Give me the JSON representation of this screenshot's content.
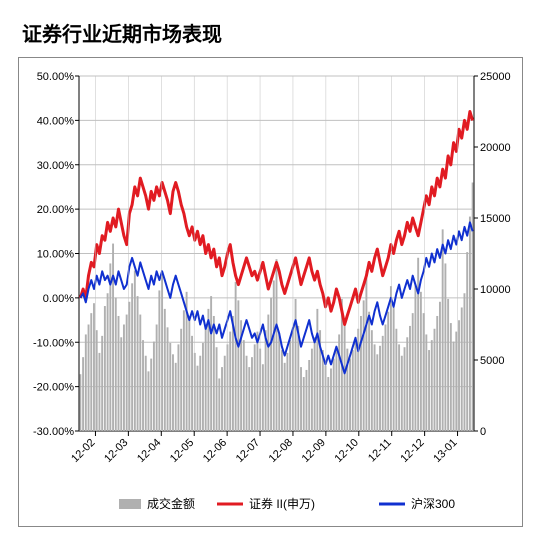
{
  "title": "证券行业近期市场表现",
  "chart": {
    "type": "combo-bar-line-dual-axis",
    "background_color": "#ffffff",
    "border_color": "#888888",
    "grid_color": "#c0c0c0",
    "grid_on": true,
    "left_axis": {
      "label_suffix": "%",
      "min": -30,
      "max": 50,
      "step": 10,
      "ticks": [
        "50.00%",
        "40.00%",
        "30.00%",
        "20.00%",
        "10.00%",
        "0.00%",
        "-10.00%",
        "-20.00%",
        "-30.00%"
      ]
    },
    "right_axis": {
      "min": 0,
      "max": 25000,
      "step": 5000,
      "ticks": [
        "25000",
        "20000",
        "15000",
        "10000",
        "5000",
        "0"
      ]
    },
    "x_axis": {
      "labels": [
        "12-02",
        "12-03",
        "12-04",
        "12-05",
        "12-06",
        "12-07",
        "12-08",
        "12-09",
        "12-10",
        "12-11",
        "12-12",
        "13-01"
      ],
      "rotation": -45
    },
    "series": [
      {
        "name": "成交金额",
        "type": "bar",
        "axis": "right",
        "color": "#b0b0b0",
        "bar_width": 0.7,
        "data": [
          4000,
          5200,
          6800,
          7500,
          8300,
          9000,
          7100,
          5500,
          6700,
          8800,
          9700,
          11800,
          13200,
          9400,
          8100,
          6600,
          7500,
          8200,
          9100,
          10400,
          11300,
          9500,
          8200,
          6400,
          5300,
          4200,
          5100,
          6300,
          7500,
          9900,
          11000,
          8600,
          7300,
          6200,
          5400,
          4800,
          6100,
          7200,
          8500,
          9800,
          7900,
          6700,
          5500,
          4600,
          5300,
          6200,
          7400,
          8600,
          9500,
          8100,
          5900,
          3700,
          4500,
          5300,
          6100,
          7000,
          8100,
          10500,
          9200,
          7800,
          6400,
          5300,
          4500,
          5200,
          6100,
          7000,
          5800,
          4700,
          7100,
          8200,
          9400,
          10600,
          12100,
          6900,
          5700,
          4800,
          5500,
          6400,
          7300,
          9300,
          7400,
          4500,
          3800,
          4300,
          5000,
          5800,
          6600,
          8600,
          7100,
          5700,
          4600,
          3800,
          4400,
          5100,
          5900,
          6800,
          9300,
          7700,
          5800,
          5100,
          5700,
          6400,
          7200,
          8100,
          9200,
          11300,
          8400,
          7100,
          6100,
          5400,
          6000,
          6700,
          7500,
          8400,
          10200,
          8700,
          7200,
          6100,
          5300,
          5900,
          6600,
          7400,
          8300,
          10300,
          12200,
          9800,
          8300,
          6800,
          5700,
          6400,
          7200,
          8100,
          9100,
          14200,
          11800,
          9300,
          7600,
          6300,
          7000,
          7800,
          8700,
          9700,
          12600,
          15100,
          17500
        ]
      },
      {
        "name": "证券 II(申万)",
        "type": "line",
        "axis": "left",
        "color": "#e11b22",
        "line_width": 3,
        "data": [
          0,
          2,
          0,
          5,
          8,
          7,
          12,
          10,
          14,
          13,
          17,
          15,
          18,
          16,
          20,
          17,
          14,
          12,
          19,
          21,
          25,
          23,
          27,
          25,
          23,
          20,
          24,
          22,
          25,
          23,
          26,
          24,
          22,
          19,
          24,
          26,
          24,
          21,
          19,
          16,
          14,
          16,
          13,
          15,
          12,
          14,
          10,
          12,
          9,
          11,
          7,
          9,
          5,
          7,
          10,
          12,
          8,
          5,
          3,
          5,
          7,
          9,
          7,
          5,
          6,
          4,
          6,
          8,
          5,
          2,
          4,
          6,
          8,
          6,
          3,
          1,
          3,
          5,
          7,
          9,
          6,
          3,
          5,
          7,
          9,
          6,
          4,
          6,
          3,
          1,
          -2,
          0,
          -3,
          -1,
          2,
          0,
          -3,
          -6,
          -4,
          -2,
          0,
          2,
          -1,
          1,
          3,
          5,
          8,
          6,
          9,
          11,
          8,
          5,
          7,
          9,
          12,
          10,
          13,
          15,
          12,
          14,
          17,
          15,
          18,
          16,
          14,
          17,
          20,
          23,
          21,
          25,
          23,
          27,
          25,
          29,
          27,
          32,
          30,
          35,
          33,
          38,
          36,
          40,
          38,
          42,
          40
        ]
      },
      {
        "name": "沪深300",
        "type": "line",
        "axis": "left",
        "color": "#1030d0",
        "line_width": 2,
        "data": [
          0,
          1,
          -1,
          2,
          4,
          2,
          5,
          3,
          6,
          4,
          5,
          3,
          5,
          3,
          6,
          4,
          2,
          3,
          7,
          9,
          7,
          5,
          8,
          6,
          4,
          2,
          5,
          3,
          6,
          4,
          6,
          4,
          2,
          0,
          3,
          5,
          3,
          1,
          -1,
          -3,
          -5,
          -3,
          -5,
          -3,
          -6,
          -4,
          -7,
          -5,
          -8,
          -6,
          -8,
          -6,
          -9,
          -7,
          -5,
          -3,
          -6,
          -9,
          -11,
          -9,
          -7,
          -5,
          -7,
          -9,
          -8,
          -10,
          -8,
          -6,
          -9,
          -11,
          -10,
          -8,
          -6,
          -8,
          -11,
          -13,
          -11,
          -9,
          -7,
          -5,
          -8,
          -11,
          -9,
          -7,
          -5,
          -8,
          -10,
          -8,
          -11,
          -13,
          -15,
          -13,
          -15,
          -13,
          -11,
          -13,
          -15,
          -17,
          -15,
          -13,
          -11,
          -9,
          -12,
          -10,
          -8,
          -6,
          -4,
          -6,
          -3,
          -1,
          -4,
          -6,
          -4,
          -2,
          0,
          -2,
          1,
          3,
          0,
          2,
          4,
          2,
          5,
          3,
          1,
          4,
          6,
          9,
          7,
          10,
          8,
          11,
          9,
          12,
          10,
          13,
          11,
          14,
          12,
          15,
          13,
          16,
          14,
          17,
          15
        ]
      }
    ],
    "legend": {
      "position": "bottom-center",
      "items": [
        {
          "label": "成交金额",
          "swatch_type": "box",
          "color": "#b0b0b0"
        },
        {
          "label": "证券 II(申万)",
          "swatch_type": "line",
          "color": "#e11b22"
        },
        {
          "label": "沪深300",
          "swatch_type": "line",
          "color": "#1030d0"
        }
      ]
    }
  }
}
